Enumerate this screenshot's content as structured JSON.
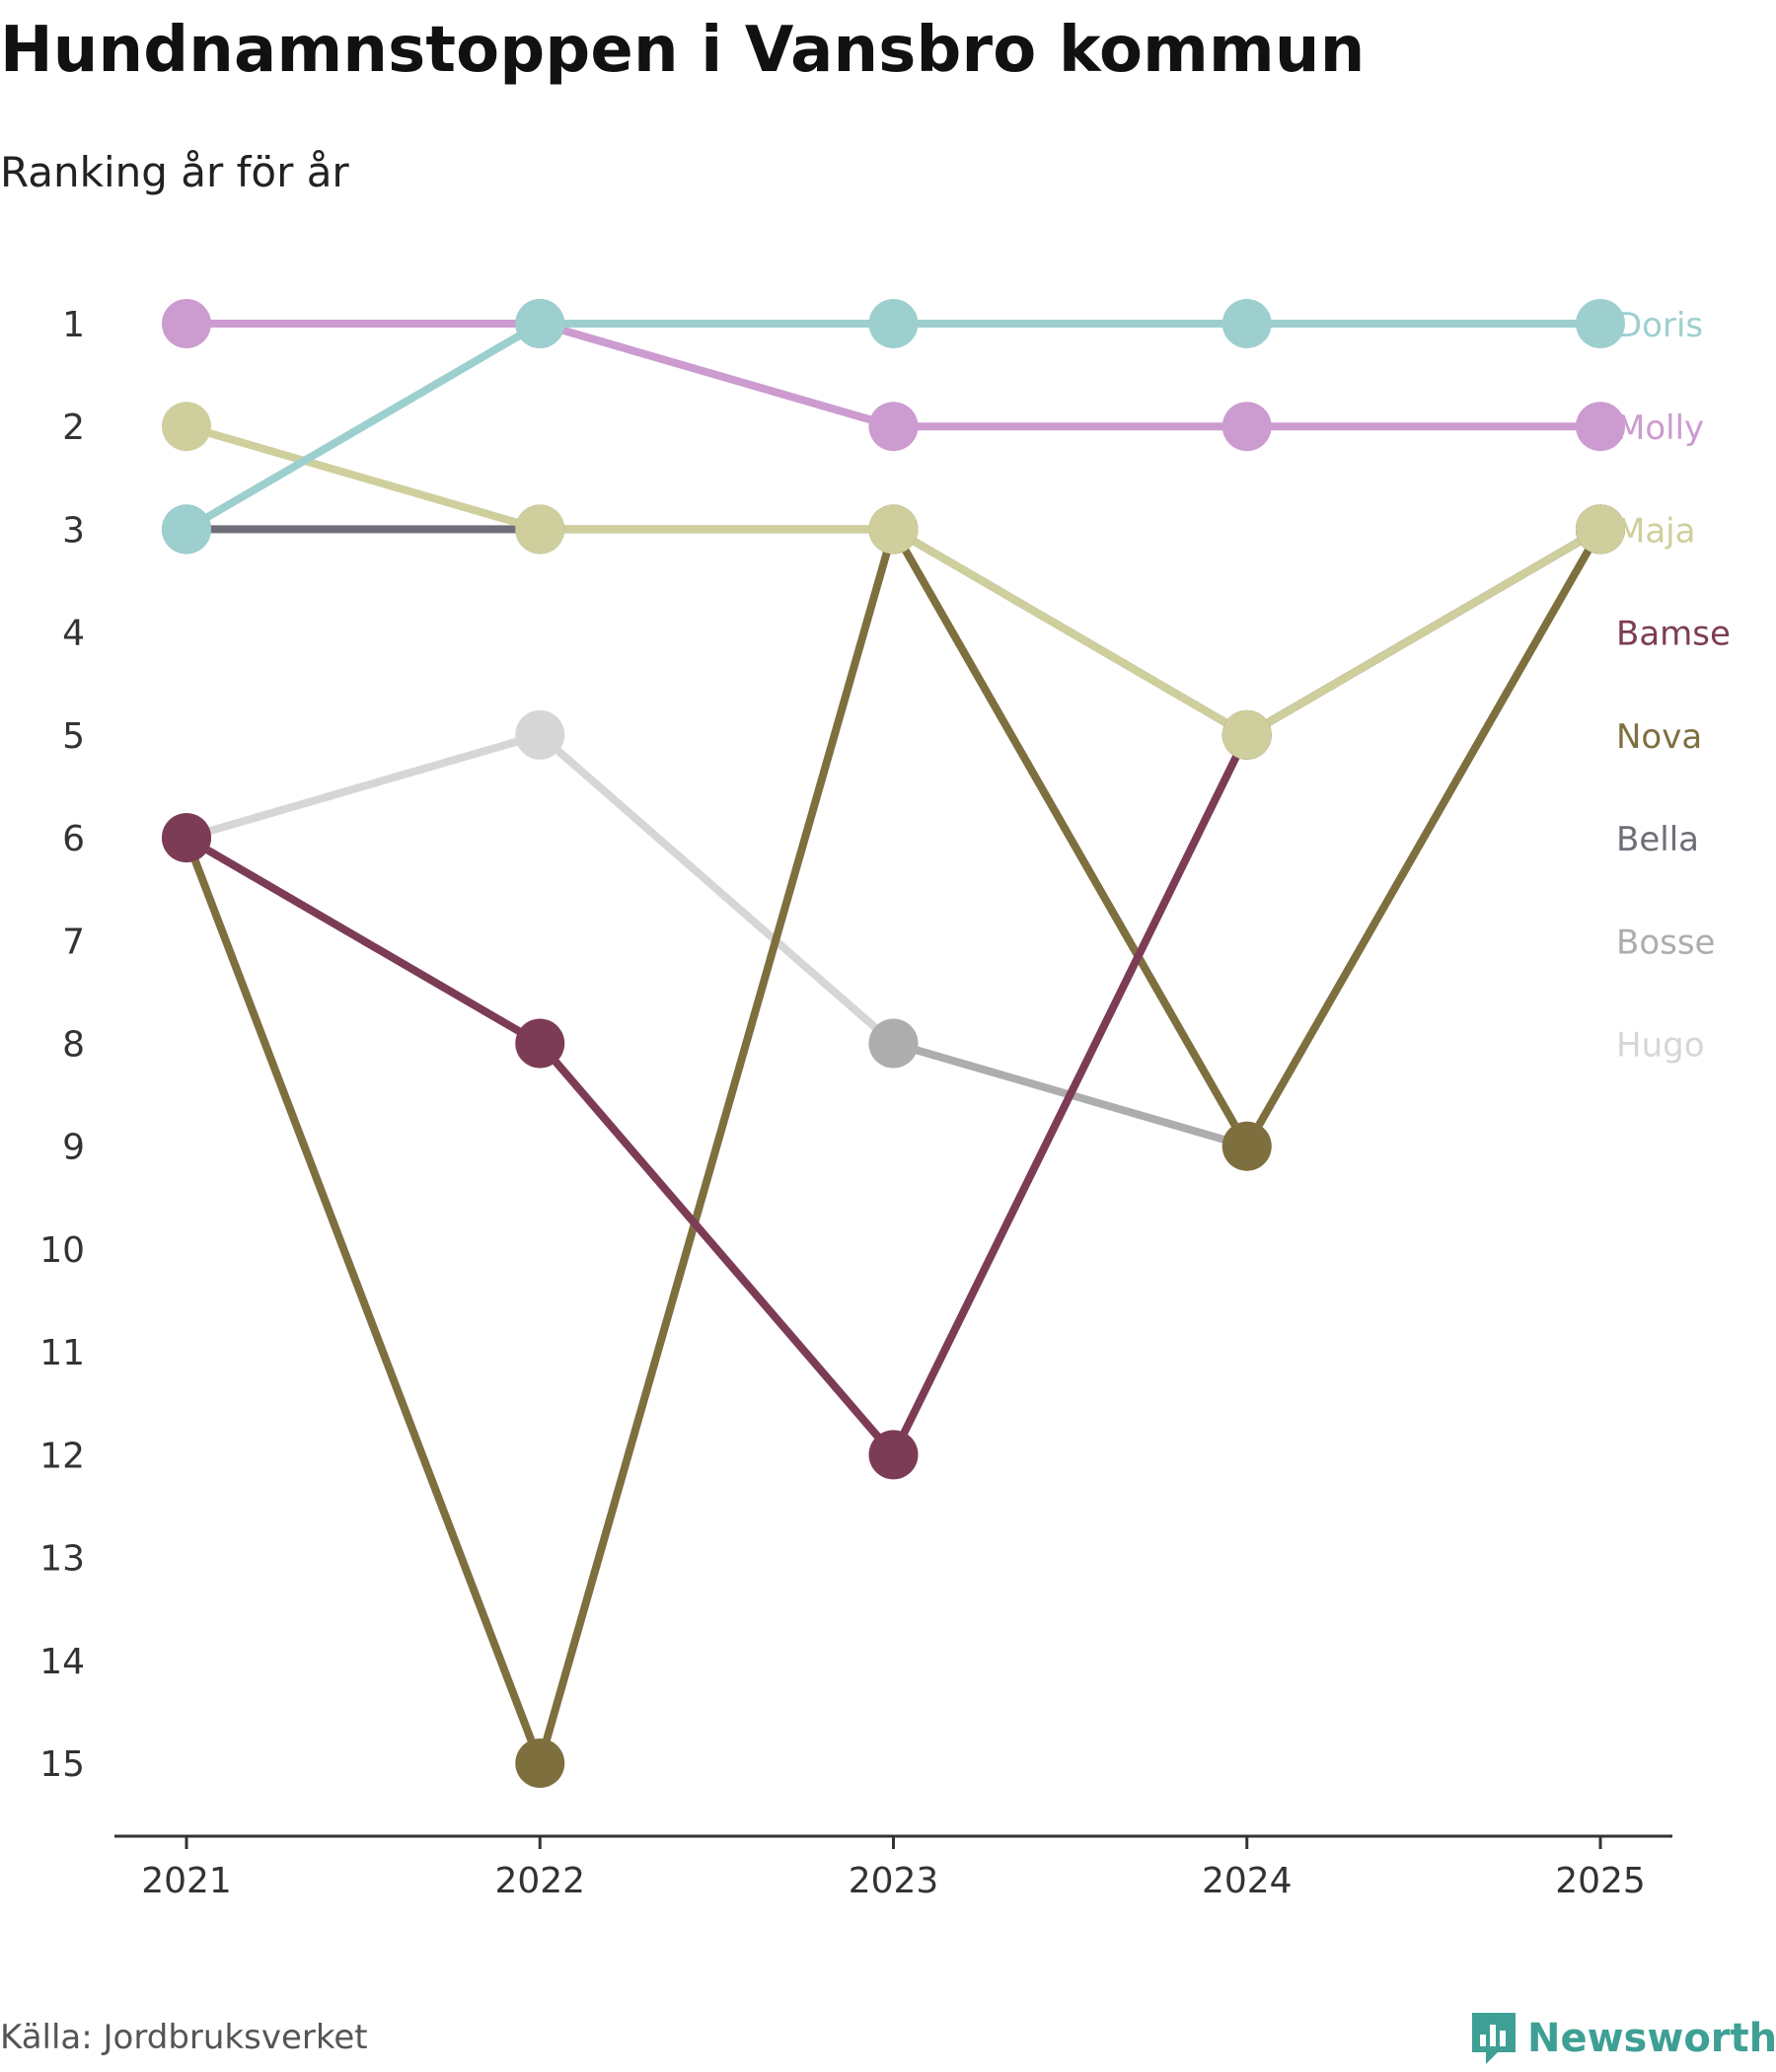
{
  "title": "Hundnamnstoppen i Vansbro kommun",
  "subtitle": "Ranking år för år",
  "source": "Källa: Jordbruksverket",
  "brand": {
    "name": "Newsworthy",
    "icon": "newsworthy-logo-icon",
    "color": "#3e9f95"
  },
  "chart_data": {
    "type": "line",
    "title": "Hundnamnstoppen i Vansbro kommun",
    "subtitle": "Ranking år för år",
    "xlabel": "",
    "ylabel": "",
    "categories": [
      "2021",
      "2022",
      "2023",
      "2024",
      "2025"
    ],
    "y_ticks": [
      1,
      2,
      3,
      4,
      5,
      6,
      7,
      8,
      9,
      10,
      11,
      12,
      13,
      14,
      15
    ],
    "ylim": [
      1,
      15
    ],
    "y_reversed": true,
    "legend": "right, inline labels",
    "series": [
      {
        "name": "Doris",
        "color": "#9dcfcf",
        "values": [
          3,
          1,
          1,
          1,
          1
        ]
      },
      {
        "name": "Molly",
        "color": "#cc9bd0",
        "values": [
          1,
          1,
          2,
          2,
          2
        ]
      },
      {
        "name": "Maja",
        "color": "#cecf9c",
        "values": [
          2,
          3,
          3,
          5,
          3
        ]
      },
      {
        "name": "Bamse",
        "color": "#7d3c55",
        "values": [
          6,
          8,
          12,
          5,
          3
        ]
      },
      {
        "name": "Nova",
        "color": "#7e6f3f",
        "values": [
          6,
          15,
          3,
          9,
          3
        ]
      },
      {
        "name": "Bella",
        "color": "#6e6e78",
        "values": [
          3,
          3,
          3,
          5,
          3
        ]
      },
      {
        "name": "Bosse",
        "color": "#adadad",
        "values": [
          null,
          null,
          8,
          9,
          null
        ]
      },
      {
        "name": "Hugo",
        "color": "#d6d6d6",
        "values": [
          6,
          5,
          8,
          null,
          null
        ]
      }
    ]
  }
}
